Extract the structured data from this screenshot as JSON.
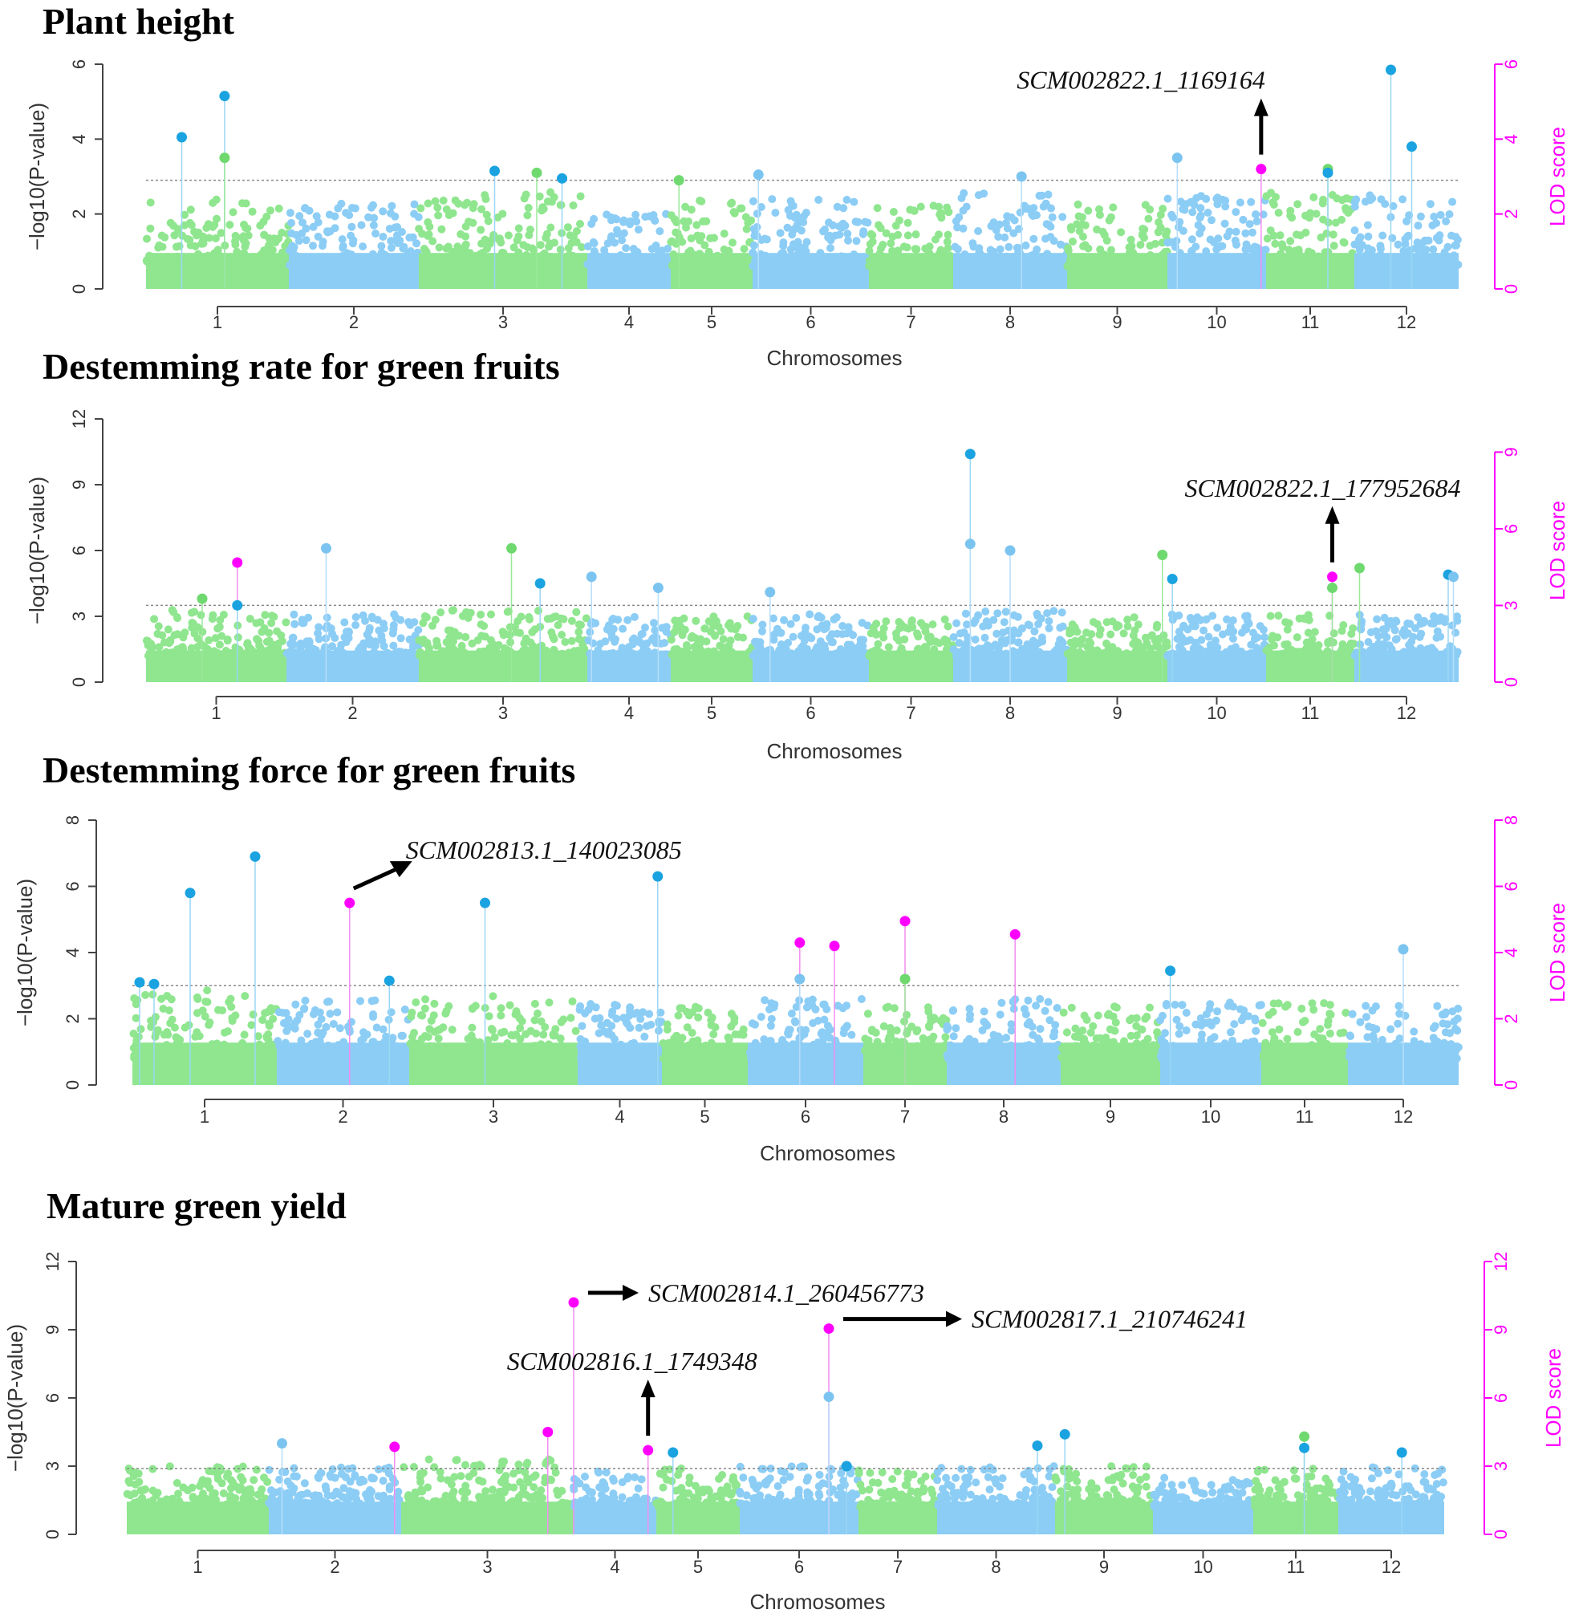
{
  "colors": {
    "green": "#8fe68f",
    "blue": "#8ccdf5",
    "sig_blue": "#1aa3e0",
    "magenta": "#ff00ff",
    "threshold": "#888888"
  },
  "chart_data": [
    {
      "type": "scatter",
      "title": "Plant height",
      "xlabel": "Chromosomes",
      "ylabel": "−log10(P-value)",
      "y2label": "LOD score",
      "categories": [
        "1",
        "2",
        "3",
        "4",
        "5",
        "6",
        "7",
        "8",
        "9",
        "10",
        "11",
        "12"
      ],
      "ylim": [
        0,
        6
      ],
      "yticks": [
        0,
        2,
        4,
        6
      ],
      "y2lim": [
        0,
        6
      ],
      "y2ticks": [
        0,
        2,
        4,
        6
      ],
      "threshold": 2.9,
      "background_max": [
        2.4,
        2.3,
        2.6,
        2.1,
        2.4,
        2.4,
        2.3,
        2.6,
        2.3,
        2.5,
        2.6,
        2.5
      ],
      "points": [
        {
          "chr": 1,
          "pos": 0.25,
          "y": 4.05,
          "kind": "blue"
        },
        {
          "chr": 1,
          "pos": 0.55,
          "y": 5.15,
          "kind": "blue"
        },
        {
          "chr": 1,
          "pos": 0.55,
          "y": 3.5,
          "kind": "green"
        },
        {
          "chr": 3,
          "pos": 0.45,
          "y": 3.15,
          "kind": "blue"
        },
        {
          "chr": 3,
          "pos": 0.7,
          "y": 3.1,
          "kind": "green"
        },
        {
          "chr": 3,
          "pos": 0.85,
          "y": 2.95,
          "kind": "blue"
        },
        {
          "chr": 5,
          "pos": 0.1,
          "y": 2.9,
          "kind": "green"
        },
        {
          "chr": 6,
          "pos": 0.05,
          "y": 3.05,
          "kind": "lightblue"
        },
        {
          "chr": 8,
          "pos": 0.6,
          "y": 3.0,
          "kind": "lightblue"
        },
        {
          "chr": 10,
          "pos": 0.1,
          "y": 3.5,
          "kind": "lightblue"
        },
        {
          "chr": 10,
          "pos": 0.95,
          "y": 3.2,
          "kind": "magenta"
        },
        {
          "chr": 11,
          "pos": 0.7,
          "y": 3.2,
          "kind": "green"
        },
        {
          "chr": 11,
          "pos": 0.7,
          "y": 3.1,
          "kind": "blue"
        },
        {
          "chr": 12,
          "pos": 0.35,
          "y": 5.85,
          "kind": "blue"
        },
        {
          "chr": 12,
          "pos": 0.55,
          "y": 3.8,
          "kind": "blue"
        }
      ],
      "annotations": [
        {
          "text": "SCM002822.1_1169164",
          "target_chr": 10,
          "target_pos": 0.95,
          "target_y": 3.2,
          "arrow": "up"
        }
      ]
    },
    {
      "type": "scatter",
      "title": "Destemming rate for green fruits",
      "xlabel": "Chromosomes",
      "ylabel": "−log10(P-value)",
      "y2label": "LOD score",
      "categories": [
        "1",
        "2",
        "3",
        "4",
        "5",
        "6",
        "7",
        "8",
        "9",
        "10",
        "11",
        "12"
      ],
      "ylim": [
        0,
        12
      ],
      "yticks": [
        0,
        3,
        6,
        9,
        12
      ],
      "y2lim": [
        0,
        10.3
      ],
      "y2ticks": [
        0,
        3,
        6,
        9
      ],
      "threshold": 3.5,
      "background_max": [
        3.3,
        3.1,
        3.3,
        3.0,
        3.0,
        3.1,
        3.0,
        3.3,
        3.0,
        3.1,
        3.1,
        3.1
      ],
      "points": [
        {
          "chr": 1,
          "pos": 0.65,
          "y": 5.45,
          "kind": "magenta"
        },
        {
          "chr": 1,
          "pos": 0.65,
          "y": 3.5,
          "kind": "blue"
        },
        {
          "chr": 1,
          "pos": 0.4,
          "y": 3.8,
          "kind": "green"
        },
        {
          "chr": 2,
          "pos": 0.3,
          "y": 6.1,
          "kind": "lightblue"
        },
        {
          "chr": 3,
          "pos": 0.55,
          "y": 6.1,
          "kind": "green"
        },
        {
          "chr": 3,
          "pos": 0.72,
          "y": 4.5,
          "kind": "blue"
        },
        {
          "chr": 4,
          "pos": 0.05,
          "y": 4.8,
          "kind": "lightblue"
        },
        {
          "chr": 4,
          "pos": 0.85,
          "y": 4.3,
          "kind": "lightblue"
        },
        {
          "chr": 6,
          "pos": 0.15,
          "y": 4.1,
          "kind": "lightblue"
        },
        {
          "chr": 8,
          "pos": 0.15,
          "y": 10.4,
          "kind": "blue"
        },
        {
          "chr": 8,
          "pos": 0.15,
          "y": 6.3,
          "kind": "lightblue"
        },
        {
          "chr": 8,
          "pos": 0.5,
          "y": 6.0,
          "kind": "lightblue"
        },
        {
          "chr": 9,
          "pos": 0.95,
          "y": 5.8,
          "kind": "green"
        },
        {
          "chr": 10,
          "pos": 0.05,
          "y": 4.7,
          "kind": "blue"
        },
        {
          "chr": 11,
          "pos": 0.75,
          "y": 4.8,
          "kind": "magenta"
        },
        {
          "chr": 11,
          "pos": 0.75,
          "y": 4.3,
          "kind": "green"
        },
        {
          "chr": 12,
          "pos": 0.05,
          "y": 5.2,
          "kind": "green"
        },
        {
          "chr": 12,
          "pos": 0.9,
          "y": 4.9,
          "kind": "blue"
        },
        {
          "chr": 12,
          "pos": 0.95,
          "y": 4.8,
          "kind": "lightblue"
        }
      ],
      "annotations": [
        {
          "text": "SCM002822.1_177952684",
          "target_chr": 11,
          "target_pos": 0.75,
          "target_y": 4.8,
          "arrow": "up"
        }
      ]
    },
    {
      "type": "scatter",
      "title": "Destemming force for green fruits",
      "xlabel": "Chromosomes",
      "ylabel": "−log10(P-value)",
      "y2label": "LOD score",
      "categories": [
        "1",
        "2",
        "3",
        "4",
        "5",
        "6",
        "7",
        "8",
        "9",
        "10",
        "11",
        "12"
      ],
      "ylim": [
        0,
        8
      ],
      "yticks": [
        0,
        2,
        4,
        6,
        8
      ],
      "y2lim": [
        0,
        8
      ],
      "y2ticks": [
        0,
        2,
        4,
        6,
        8
      ],
      "threshold": 3.0,
      "background_max": [
        2.9,
        2.6,
        2.7,
        2.5,
        2.4,
        2.6,
        2.4,
        2.6,
        2.4,
        2.5,
        2.5,
        2.5
      ],
      "points": [
        {
          "chr": 1,
          "pos": 0.05,
          "y": 3.1,
          "kind": "blue"
        },
        {
          "chr": 1,
          "pos": 0.15,
          "y": 3.05,
          "kind": "blue"
        },
        {
          "chr": 1,
          "pos": 0.4,
          "y": 5.8,
          "kind": "blue"
        },
        {
          "chr": 1,
          "pos": 0.85,
          "y": 6.9,
          "kind": "blue"
        },
        {
          "chr": 2,
          "pos": 0.55,
          "y": 5.5,
          "kind": "magenta"
        },
        {
          "chr": 2,
          "pos": 0.85,
          "y": 3.15,
          "kind": "blue"
        },
        {
          "chr": 3,
          "pos": 0.45,
          "y": 5.5,
          "kind": "blue"
        },
        {
          "chr": 4,
          "pos": 0.95,
          "y": 6.3,
          "kind": "blue"
        },
        {
          "chr": 6,
          "pos": 0.45,
          "y": 4.3,
          "kind": "magenta"
        },
        {
          "chr": 6,
          "pos": 0.45,
          "y": 3.2,
          "kind": "lightblue"
        },
        {
          "chr": 6,
          "pos": 0.75,
          "y": 4.2,
          "kind": "magenta"
        },
        {
          "chr": 7,
          "pos": 0.5,
          "y": 4.95,
          "kind": "magenta"
        },
        {
          "chr": 7,
          "pos": 0.5,
          "y": 3.2,
          "kind": "green"
        },
        {
          "chr": 8,
          "pos": 0.6,
          "y": 4.55,
          "kind": "magenta"
        },
        {
          "chr": 10,
          "pos": 0.1,
          "y": 3.45,
          "kind": "blue"
        },
        {
          "chr": 12,
          "pos": 0.5,
          "y": 4.1,
          "kind": "lightblue"
        }
      ],
      "annotations": [
        {
          "text": "SCM002813.1_140023085",
          "target_chr": 2,
          "target_pos": 0.55,
          "target_y": 5.5,
          "arrow": "up-right"
        }
      ]
    },
    {
      "type": "scatter",
      "title": "Mature green yield",
      "xlabel": "Chromosomes",
      "ylabel": "−log10(P-value)",
      "y2label": "LOD score",
      "categories": [
        "1",
        "2",
        "3",
        "4",
        "5",
        "6",
        "7",
        "8",
        "9",
        "10",
        "11",
        "12"
      ],
      "ylim": [
        0,
        12
      ],
      "yticks": [
        0,
        3,
        6,
        9,
        12
      ],
      "y2lim": [
        0,
        12
      ],
      "y2ticks": [
        0,
        3,
        6,
        9,
        12
      ],
      "threshold": 2.9,
      "background_max": [
        3.0,
        3.0,
        3.3,
        2.8,
        3.0,
        3.0,
        2.9,
        3.0,
        3.1,
        2.5,
        2.9,
        3.0
      ],
      "points": [
        {
          "chr": 2,
          "pos": 0.1,
          "y": 4.0,
          "kind": "lightblue"
        },
        {
          "chr": 2,
          "pos": 0.95,
          "y": 3.85,
          "kind": "magenta"
        },
        {
          "chr": 3,
          "pos": 0.85,
          "y": 4.5,
          "kind": "magenta"
        },
        {
          "chr": 3,
          "pos": 1.0,
          "y": 10.2,
          "kind": "magenta"
        },
        {
          "chr": 4,
          "pos": 0.9,
          "y": 3.7,
          "kind": "magenta"
        },
        {
          "chr": 5,
          "pos": 0.2,
          "y": 3.6,
          "kind": "blue"
        },
        {
          "chr": 6,
          "pos": 0.75,
          "y": 9.05,
          "kind": "magenta"
        },
        {
          "chr": 6,
          "pos": 0.75,
          "y": 6.05,
          "kind": "lightblue"
        },
        {
          "chr": 6,
          "pos": 0.9,
          "y": 3.0,
          "kind": "blue"
        },
        {
          "chr": 8,
          "pos": 0.85,
          "y": 3.9,
          "kind": "blue"
        },
        {
          "chr": 9,
          "pos": 0.1,
          "y": 4.4,
          "kind": "blue"
        },
        {
          "chr": 11,
          "pos": 0.6,
          "y": 4.3,
          "kind": "green"
        },
        {
          "chr": 11,
          "pos": 0.6,
          "y": 3.8,
          "kind": "blue"
        },
        {
          "chr": 12,
          "pos": 0.6,
          "y": 3.6,
          "kind": "blue"
        }
      ],
      "annotations": [
        {
          "text": "SCM002814.1_260456773",
          "target_chr": 3,
          "target_pos": 1.0,
          "target_y": 10.2,
          "arrow": "right"
        },
        {
          "text": "SCM002817.1_210746241",
          "target_chr": 6,
          "target_pos": 0.75,
          "target_y": 9.05,
          "arrow": "right"
        },
        {
          "text": "SCM002816.1_1749348",
          "target_chr": 4,
          "target_pos": 0.9,
          "target_y": 3.7,
          "arrow": "up"
        }
      ]
    }
  ]
}
